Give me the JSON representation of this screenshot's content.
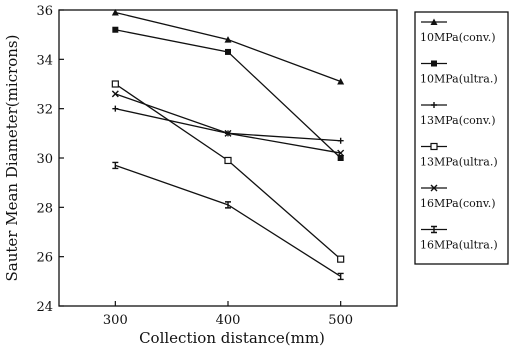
{
  "chart_data": {
    "type": "line",
    "xlabel": "Collection distance(mm)",
    "ylabel": "Sauter Mean Diameter(microns)",
    "x": [
      300,
      400,
      500
    ],
    "xticks": [
      300,
      400,
      500
    ],
    "xlim": [
      250,
      550
    ],
    "yticks": [
      24,
      26,
      28,
      30,
      32,
      34,
      36
    ],
    "ylim": [
      24,
      36
    ],
    "legend_position": "right",
    "series": [
      {
        "name": "10MPa(conv.)",
        "marker": "triangle",
        "values": [
          35.9,
          34.8,
          33.1
        ]
      },
      {
        "name": "10MPa(ultra.)",
        "marker": "square",
        "values": [
          35.2,
          34.3,
          30.0
        ]
      },
      {
        "name": "13MPa(conv.)",
        "marker": "plus",
        "values": [
          32.0,
          31.0,
          30.7
        ]
      },
      {
        "name": "13MPa(ultra.)",
        "marker": "open-square",
        "values": [
          33.0,
          29.9,
          25.9
        ]
      },
      {
        "name": "16MPa(conv.)",
        "marker": "cross",
        "values": [
          32.6,
          31.0,
          30.2
        ]
      },
      {
        "name": "16MPa(ultra.)",
        "marker": "bar",
        "values": [
          29.7,
          28.1,
          25.2
        ]
      }
    ]
  }
}
